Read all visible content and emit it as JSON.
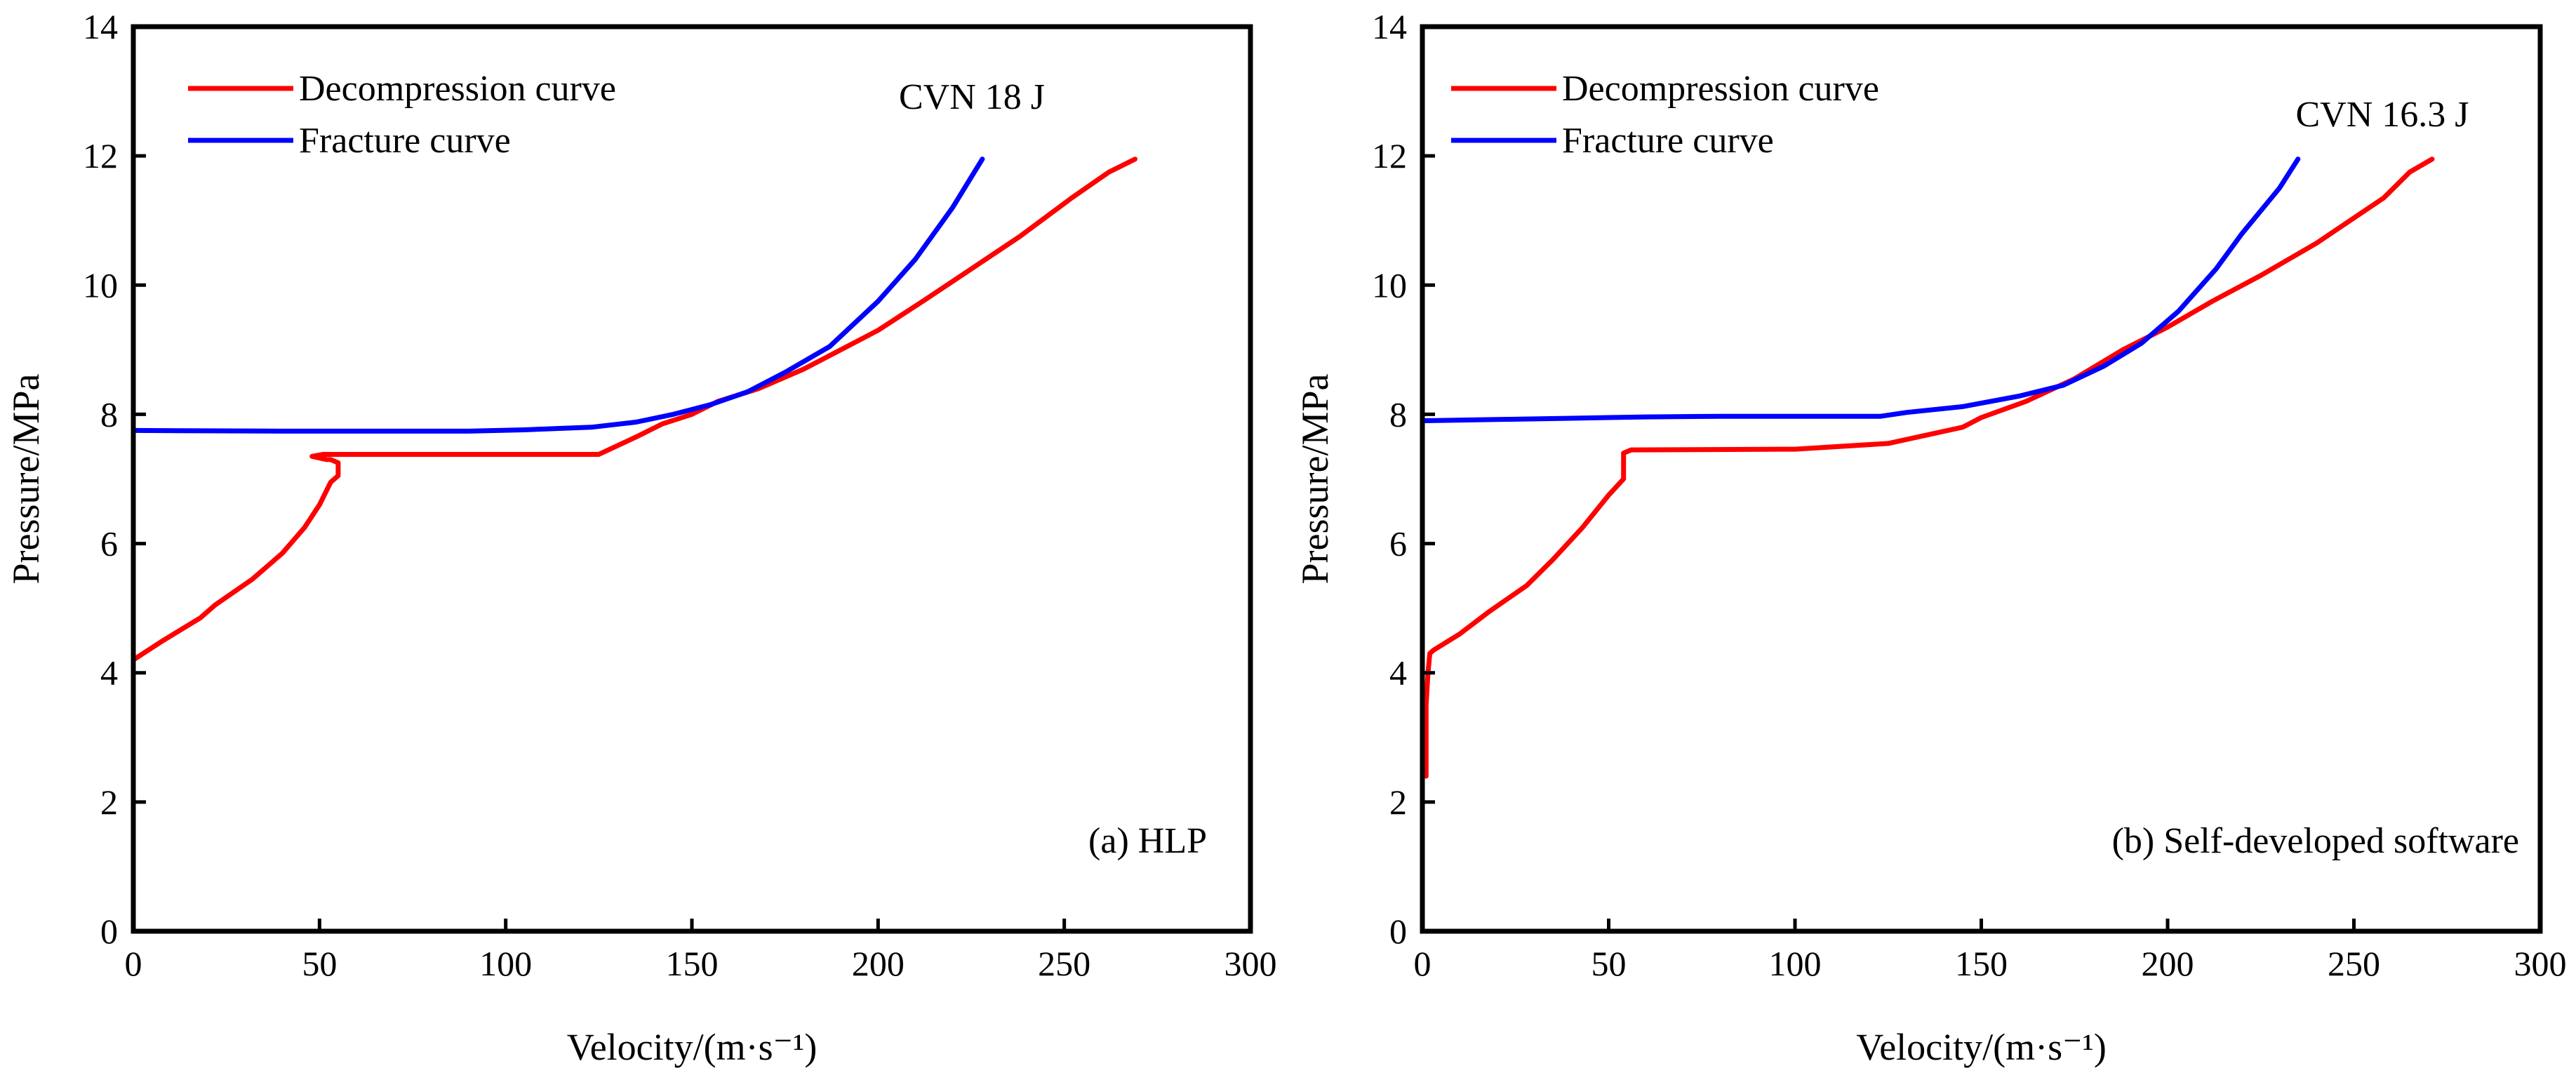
{
  "chart_data": [
    {
      "type": "line",
      "panel": "a",
      "xlabel": "Velocity/(m·s⁻¹)",
      "ylabel": "Pressure/MPa",
      "xlim": [
        0,
        300
      ],
      "ylim": [
        0,
        14
      ],
      "xticks": [
        0,
        50,
        100,
        150,
        200,
        250,
        300
      ],
      "yticks": [
        0,
        2,
        4,
        6,
        8,
        10,
        12,
        14
      ],
      "grid": false,
      "legend_position": "top-left",
      "annotations": {
        "cvn": "CVN 18 J",
        "panel_label": "(a) HLP"
      },
      "series": [
        {
          "name": "Decompression curve",
          "color": "#ff0000",
          "x": [
            0,
            8,
            18,
            22,
            32,
            40,
            46,
            50,
            53,
            55,
            55,
            53,
            52,
            48,
            51,
            52,
            60,
            125,
            135,
            142,
            150,
            157,
            168,
            180,
            190,
            200,
            212,
            225,
            238,
            252,
            262,
            269
          ],
          "y": [
            4.2,
            4.5,
            4.85,
            5.05,
            5.45,
            5.85,
            6.25,
            6.6,
            6.95,
            7.05,
            7.25,
            7.3,
            7.3,
            7.35,
            7.38,
            7.38,
            7.38,
            7.38,
            7.65,
            7.85,
            8.0,
            8.2,
            8.4,
            8.7,
            9.0,
            9.3,
            9.75,
            10.25,
            10.75,
            11.35,
            11.75,
            11.95
          ]
        },
        {
          "name": "Fracture curve",
          "color": "#0000ff",
          "x": [
            0,
            40,
            90,
            105,
            123,
            135,
            145,
            155,
            165,
            175,
            187,
            200,
            210,
            220,
            228
          ],
          "y": [
            7.75,
            7.74,
            7.74,
            7.76,
            7.8,
            7.88,
            8.0,
            8.15,
            8.35,
            8.65,
            9.05,
            9.75,
            10.4,
            11.2,
            11.95
          ]
        }
      ]
    },
    {
      "type": "line",
      "panel": "b",
      "xlabel": "Velocity/(m·s⁻¹)",
      "ylabel": "Pressure/MPa",
      "xlim": [
        0,
        300
      ],
      "ylim": [
        0,
        14
      ],
      "xticks": [
        0,
        50,
        100,
        150,
        200,
        250,
        300
      ],
      "yticks": [
        0,
        2,
        4,
        6,
        8,
        10,
        12,
        14
      ],
      "grid": false,
      "legend_position": "top-left",
      "annotations": {
        "cvn": "CVN 16.3 J",
        "panel_label": "(b) Self-developed software"
      },
      "series": [
        {
          "name": "Decompression curve",
          "color": "#ff0000",
          "x": [
            1,
            1,
            1.5,
            2,
            3,
            10,
            18,
            28,
            35,
            43,
            50,
            54,
            54,
            56,
            100,
            125,
            145,
            150,
            162,
            175,
            188,
            200,
            212,
            225,
            240,
            258,
            265,
            271
          ],
          "y": [
            2.4,
            3.5,
            4.0,
            4.3,
            4.35,
            4.6,
            4.95,
            5.35,
            5.75,
            6.25,
            6.75,
            7.0,
            7.4,
            7.45,
            7.46,
            7.55,
            7.8,
            7.95,
            8.2,
            8.55,
            9.0,
            9.35,
            9.75,
            10.15,
            10.65,
            11.35,
            11.75,
            11.95
          ]
        },
        {
          "name": "Fracture curve",
          "color": "#0000ff",
          "x": [
            0,
            20,
            40,
            60,
            80,
            100,
            123,
            130,
            145,
            160,
            172,
            183,
            193,
            203,
            213,
            220,
            230,
            235
          ],
          "y": [
            7.9,
            7.92,
            7.94,
            7.96,
            7.97,
            7.97,
            7.97,
            8.03,
            8.12,
            8.28,
            8.45,
            8.75,
            9.1,
            9.6,
            10.25,
            10.8,
            11.5,
            11.95
          ]
        }
      ]
    }
  ]
}
